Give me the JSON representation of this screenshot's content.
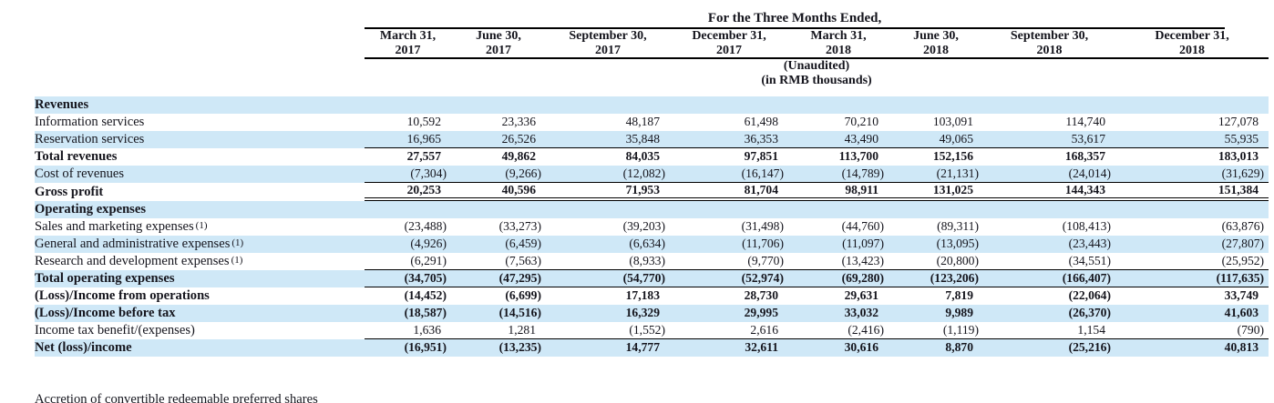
{
  "colors": {
    "stripe": "#cfe8f7",
    "text": "#15151d",
    "line": "#000000",
    "background": "#ffffff"
  },
  "table": {
    "group_header": "For the Three Months Ended,",
    "column_headers": [
      {
        "month": "March 31,",
        "year": "2017"
      },
      {
        "month": "June 30,",
        "year": "2017"
      },
      {
        "month": "September 30,",
        "year": "2017"
      },
      {
        "month": "December 31,",
        "year": "2017"
      },
      {
        "month": "March 31,",
        "year": "2018"
      },
      {
        "month": "June 30,",
        "year": "2018"
      },
      {
        "month": "September 30,",
        "year": "2018"
      },
      {
        "month": "December 31,",
        "year": "2018"
      }
    ],
    "subheader_line1": "(Unaudited)",
    "subheader_line2": "(in RMB thousands)",
    "rows": [
      {
        "label": "Revenues",
        "type": "section",
        "underline": "none",
        "footnote_ref": "",
        "values": [
          "",
          "",
          "",
          "",
          "",
          "",
          "",
          ""
        ]
      },
      {
        "label": "Information services",
        "type": "item",
        "underline": "none",
        "footnote_ref": "",
        "values": [
          "10,592",
          "23,336",
          "48,187",
          "61,498",
          "70,210",
          "103,091",
          "114,740",
          "127,078"
        ]
      },
      {
        "label": "Reservation services",
        "type": "item",
        "underline": "single",
        "footnote_ref": "",
        "values": [
          "16,965",
          "26,526",
          "35,848",
          "36,353",
          "43,490",
          "49,065",
          "53,617",
          "55,935"
        ]
      },
      {
        "label": "Total revenues",
        "type": "total",
        "underline": "none",
        "footnote_ref": "",
        "values": [
          "27,557",
          "49,862",
          "84,035",
          "97,851",
          "113,700",
          "152,156",
          "168,357",
          "183,013"
        ]
      },
      {
        "label": "Cost of revenues",
        "type": "item",
        "underline": "single",
        "footnote_ref": "",
        "values": [
          "(7,304)",
          "(9,266)",
          "(12,082)",
          "(16,147)",
          "(14,789)",
          "(21,131)",
          "(24,014)",
          "(31,629)"
        ]
      },
      {
        "label": "Gross profit",
        "type": "total",
        "underline": "double",
        "footnote_ref": "",
        "values": [
          "20,253",
          "40,596",
          "71,953",
          "81,704",
          "98,911",
          "131,025",
          "144,343",
          "151,384"
        ]
      },
      {
        "label": "Operating expenses",
        "type": "section",
        "underline": "none",
        "footnote_ref": "",
        "values": [
          "",
          "",
          "",
          "",
          "",
          "",
          "",
          ""
        ]
      },
      {
        "label": "Sales and marketing expenses",
        "type": "item",
        "underline": "none",
        "footnote_ref": "(1)",
        "values": [
          "(23,488)",
          "(33,273)",
          "(39,203)",
          "(31,498)",
          "(44,760)",
          "(89,311)",
          "(108,413)",
          "(63,876)"
        ]
      },
      {
        "label": "General and administrative expenses",
        "type": "item",
        "underline": "none",
        "footnote_ref": "(1)",
        "values": [
          "(4,926)",
          "(6,459)",
          "(6,634)",
          "(11,706)",
          "(11,097)",
          "(13,095)",
          "(23,443)",
          "(27,807)"
        ]
      },
      {
        "label": "Research and development expenses",
        "type": "item",
        "underline": "single",
        "footnote_ref": "(1)",
        "values": [
          "(6,291)",
          "(7,563)",
          "(8,933)",
          "(9,770)",
          "(13,423)",
          "(20,800)",
          "(34,551)",
          "(25,952)"
        ]
      },
      {
        "label": "Total operating expenses",
        "type": "total",
        "underline": "single",
        "footnote_ref": "",
        "values": [
          "(34,705)",
          "(47,295)",
          "(54,770)",
          "(52,974)",
          "(69,280)",
          "(123,206)",
          "(166,407)",
          "(117,635)"
        ]
      },
      {
        "label": "(Loss)/Income from operations",
        "type": "total",
        "underline": "none",
        "footnote_ref": "",
        "values": [
          "(14,452)",
          "(6,699)",
          "17,183",
          "28,730",
          "29,631",
          "7,819",
          "(22,064)",
          "33,749"
        ]
      },
      {
        "label": "(Loss)/Income before tax",
        "type": "total",
        "underline": "none",
        "footnote_ref": "",
        "values": [
          "(18,587)",
          "(14,516)",
          "16,329",
          "29,995",
          "33,032",
          "9,989",
          "(26,370)",
          "41,603"
        ]
      },
      {
        "label": "Income tax benefit/(expenses)",
        "type": "item",
        "underline": "single",
        "footnote_ref": "",
        "values": [
          "1,636",
          "1,281",
          "(1,552)",
          "2,616",
          "(2,416)",
          "(1,119)",
          "1,154",
          "(790)"
        ]
      },
      {
        "label": "Net (loss)/income",
        "type": "total",
        "underline": "none",
        "footnote_ref": "",
        "values": [
          "(16,951)",
          "(13,235)",
          "14,777",
          "32,611",
          "30,616",
          "8,870",
          "(25,216)",
          "40,813"
        ]
      }
    ],
    "footnote_clipped": "Accretion of convertible redeemable preferred shares"
  }
}
